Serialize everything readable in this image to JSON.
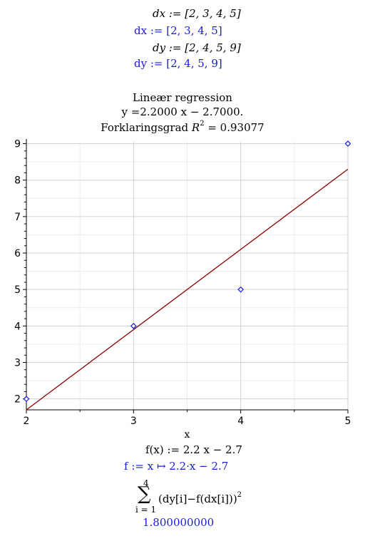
{
  "worksheet": {
    "inputs": {
      "dx_cmd": "dx := [2, 3, 4, 5]",
      "dx_out": "dx := [2, 3, 4, 5]",
      "dy_cmd": "dy := [2, 4, 5, 9]",
      "dy_out": "dy := [2, 4, 5, 9]"
    },
    "title_line1": "Lineær regression",
    "title_line2": "y =2.2000 x − 2.7000.",
    "title_line3_prefix": "Forklaringsgrad ",
    "title_line3_r": "R",
    "title_line3_exp": "2",
    "title_line3_suffix": " = 0.93077",
    "f_cmd": "f(x) := 2.2 x − 2.7",
    "f_out": "f := x ↦ 2.2·x − 2.7",
    "sum_upper": "4",
    "sum_lower": "i = 1",
    "sum_body": "(dy[i]−f(dx[i]))",
    "sum_exp": "2",
    "sum_result": "1.800000000"
  },
  "chart_data": {
    "type": "scatter",
    "xlabel": "x",
    "ylabel": "",
    "xlim": [
      2,
      5
    ],
    "ylim": [
      1.7,
      9.05
    ],
    "x_ticks": [
      2,
      3,
      4,
      5
    ],
    "y_ticks": [
      2,
      3,
      4,
      5,
      6,
      7,
      8,
      9
    ],
    "grid": true,
    "points": [
      {
        "x": 2,
        "y": 2
      },
      {
        "x": 3,
        "y": 4
      },
      {
        "x": 4,
        "y": 5
      },
      {
        "x": 5,
        "y": 9
      }
    ],
    "regression": {
      "slope": 2.2,
      "intercept": -2.7
    },
    "colors": {
      "points": "#1a1adb",
      "line": "#8b0000",
      "grid": "#d0d0d0"
    }
  }
}
